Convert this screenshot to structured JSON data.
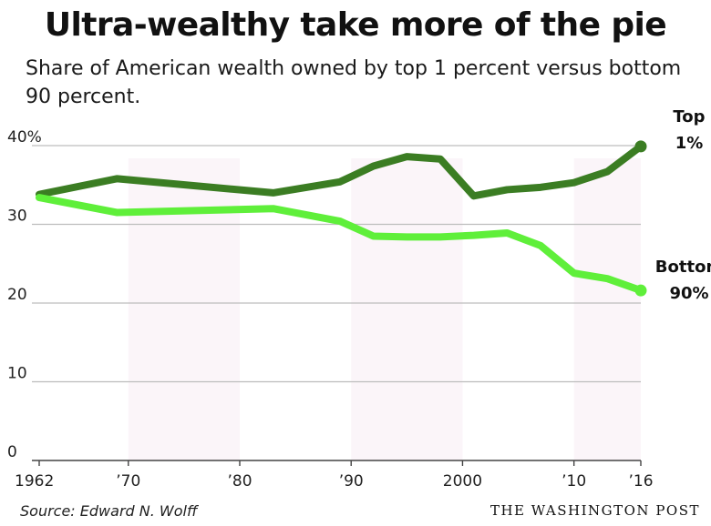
{
  "header": {
    "title": "Ultra-wealthy take more of the pie",
    "subtitle": "Share of American wealth owned by top 1 percent versus bottom 90 percent."
  },
  "footer": {
    "source": "Source: Edward N. Wolff",
    "credit": "THE WASHINGTON POST"
  },
  "colors": {
    "top": "#3b7d23",
    "bottom": "#5fef3a",
    "grid": "#bdbdbd",
    "shade": "#fbf5f9"
  },
  "chart_data": {
    "type": "line",
    "title": "Ultra-wealthy take more of the pie",
    "subtitle": "Share of American wealth owned by top 1 percent versus bottom 90 percent.",
    "xlabel": "",
    "ylabel": "",
    "xlim": [
      1962,
      2016
    ],
    "ylim": [
      0,
      40
    ],
    "grid": true,
    "x_ticks": [
      1962,
      1970,
      1980,
      1990,
      2000,
      2010,
      2016
    ],
    "x_tick_labels": [
      "1962",
      "’70",
      "’80",
      "’90",
      "2000",
      "’10",
      "’16"
    ],
    "y_ticks": [
      0,
      10,
      20,
      30,
      40
    ],
    "y_tick_labels": [
      "0",
      "10",
      "20",
      "30",
      "40%"
    ],
    "shaded_decades": [
      [
        1970,
        1980
      ],
      [
        1990,
        2000
      ],
      [
        2010,
        2016
      ]
    ],
    "series": [
      {
        "name": "Top 1%",
        "label_lines": [
          "Top",
          "1%"
        ],
        "color": "#3b7d23",
        "x": [
          1962,
          1969,
          1983,
          1989,
          1992,
          1995,
          1998,
          2001,
          2004,
          2007,
          2010,
          2013,
          2016
        ],
        "y": [
          33.8,
          35.8,
          34.0,
          35.4,
          37.4,
          38.6,
          38.3,
          33.6,
          34.4,
          34.7,
          35.3,
          36.7,
          39.9
        ]
      },
      {
        "name": "Bottom 90%",
        "label_lines": [
          "Bottom",
          "90%"
        ],
        "color": "#5fef3a",
        "x": [
          1962,
          1969,
          1983,
          1989,
          1992,
          1995,
          1998,
          2001,
          2004,
          2007,
          2010,
          2013,
          2016
        ],
        "y": [
          33.4,
          31.5,
          32.0,
          30.4,
          28.5,
          28.4,
          28.4,
          28.6,
          28.9,
          27.3,
          23.8,
          23.1,
          21.6
        ]
      }
    ]
  }
}
